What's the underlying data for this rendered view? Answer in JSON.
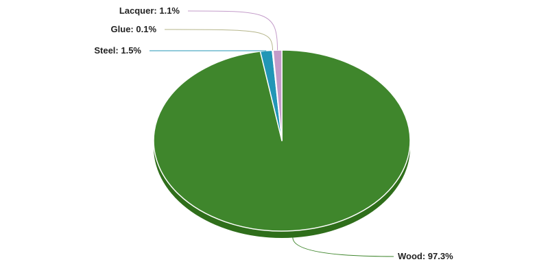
{
  "chart_data": {
    "type": "pie",
    "title": "",
    "slices": [
      {
        "name": "Wood",
        "value": 97.3,
        "label": "Wood: 97.3%",
        "color": "#3f862c",
        "side_color": "#2f6e1b"
      },
      {
        "name": "Steel",
        "value": 1.5,
        "label": "Steel: 1.5%",
        "color": "#2196b6",
        "side_color": "#16779a"
      },
      {
        "name": "Glue",
        "value": 0.1,
        "label": "Glue: 0.1%",
        "color": "#b5b58a",
        "side_color": "#97976d"
      },
      {
        "name": "Lacquer",
        "value": 1.1,
        "label": "Lacquer: 1.1%",
        "color": "#c39bc9",
        "side_color": "#a57dab"
      }
    ],
    "legend": "none",
    "style": "3d"
  }
}
